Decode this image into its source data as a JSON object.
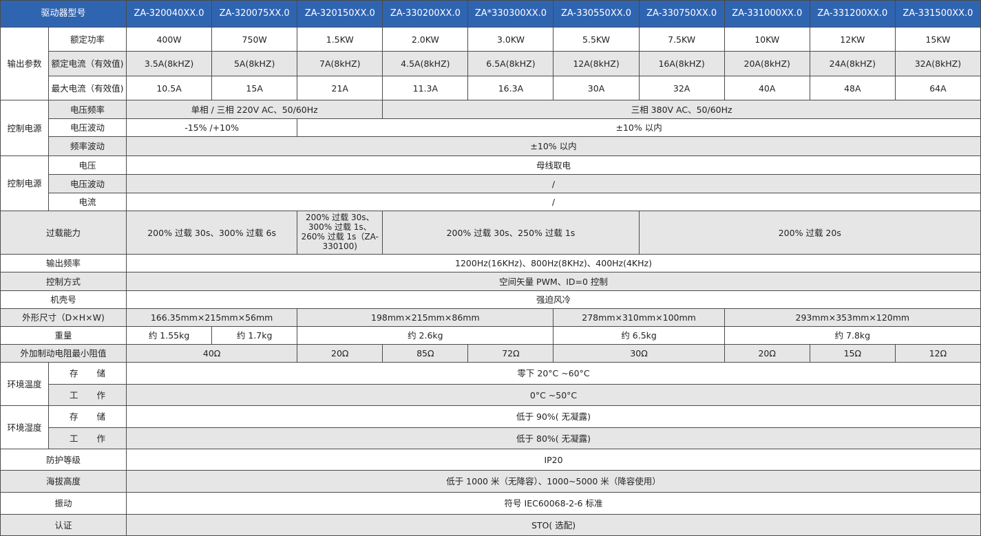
{
  "header": {
    "label": "驱动器型号",
    "models": [
      "ZA-320040XX.0",
      "ZA-320075XX.0",
      "ZA-320150XX.0",
      "ZA-330200XX.0",
      "ZA*330300XX.0",
      "ZA-330550XX.0",
      "ZA-330750XX.0",
      "ZA-331000XX.0",
      "ZA-331200XX.0",
      "ZA-331500XX.0"
    ]
  },
  "colors": {
    "header_bg": "#2f64b1",
    "header_text": "#ffffff",
    "shaded_row": "#e6e6e6",
    "border": "#4a4a4a"
  },
  "rows": [
    {
      "group": "输出参数",
      "group_rows": 3,
      "label": "额定功率",
      "gray": false,
      "h": 35,
      "cells": [
        [
          "400W",
          1
        ],
        [
          "750W",
          1
        ],
        [
          "1.5KW",
          1
        ],
        [
          "2.0KW",
          1
        ],
        [
          "3.0KW",
          1
        ],
        [
          "5.5KW",
          1
        ],
        [
          "7.5KW",
          1
        ],
        [
          "10KW",
          1
        ],
        [
          "12KW",
          1
        ],
        [
          "15KW",
          1
        ]
      ]
    },
    {
      "label": "额定电流（有效值)",
      "gray": true,
      "h": 36,
      "cells": [
        [
          "3.5A(8kHZ)",
          1
        ],
        [
          "5A(8kHZ)",
          1
        ],
        [
          "7A(8kHZ)",
          1
        ],
        [
          "4.5A(8kHZ)",
          1
        ],
        [
          "6.5A(8kHZ)",
          1
        ],
        [
          "12A(8kHZ)",
          1
        ],
        [
          "16A(8kHZ)",
          1
        ],
        [
          "20A(8kHZ)",
          1
        ],
        [
          "24A(8kHZ)",
          1
        ],
        [
          "32A(8kHZ)",
          1
        ]
      ]
    },
    {
      "label": "最大电流（有效值)",
      "gray": false,
      "h": 35,
      "cells": [
        [
          "10.5A",
          1
        ],
        [
          "15A",
          1
        ],
        [
          "21A",
          1
        ],
        [
          "11.3A",
          1
        ],
        [
          "16.3A",
          1
        ],
        [
          "30A",
          1
        ],
        [
          "32A",
          1
        ],
        [
          "40A",
          1
        ],
        [
          "48A",
          1
        ],
        [
          "64A",
          1
        ]
      ]
    },
    {
      "group": "控制电源",
      "group_rows": 3,
      "label": "电压频率",
      "gray": true,
      "h": 27,
      "cells": [
        [
          "单相 / 三相 220V AC、50/60Hz",
          3
        ],
        [
          "三相 380V AC、50/60Hz",
          7
        ]
      ]
    },
    {
      "label": "电压波动",
      "gray": false,
      "h": 26,
      "cells": [
        [
          "-15% /+10%",
          2
        ],
        [
          "±10% 以内",
          8
        ]
      ]
    },
    {
      "label": "频率波动",
      "gray": true,
      "h": 28,
      "cells": [
        [
          "±10% 以内",
          10
        ]
      ]
    },
    {
      "group": "控制电源",
      "group_rows": 3,
      "label": "电压",
      "gray": false,
      "h": 27,
      "cells": [
        [
          "母线取电",
          10
        ]
      ]
    },
    {
      "label": "电压波动",
      "gray": true,
      "h": 27,
      "cells": [
        [
          "/",
          10
        ]
      ]
    },
    {
      "label": "电流",
      "gray": false,
      "h": 26,
      "cells": [
        [
          "/",
          10
        ]
      ]
    },
    {
      "label": "过载能力",
      "gray": true,
      "h": 63,
      "cells": [
        [
          "200% 过载 30s、300% 过载 6s",
          2
        ],
        [
          "200% 过载 30s、300% 过载 1s、260% 过载 1s（ZA-330100)",
          1
        ],
        [
          "200% 过载 30s、250% 过载 1s",
          3
        ],
        [
          "200% 过载 20s",
          4
        ]
      ]
    },
    {
      "label": "输出频率",
      "gray": false,
      "h": 26,
      "cells": [
        [
          "1200Hz(16KHz)、800Hz(8KHz)、400Hz(4KHz)",
          10
        ]
      ]
    },
    {
      "label": "控制方式",
      "gray": true,
      "h": 27,
      "cells": [
        [
          "空间矢量 PWM、ID=0 控制",
          10
        ]
      ]
    },
    {
      "label": "机壳号",
      "gray": false,
      "h": 26,
      "cells": [
        [
          "强迫风冷",
          10
        ]
      ]
    },
    {
      "label": "外形尺寸（D×H×W)",
      "gray": true,
      "h": 26,
      "cells": [
        [
          "166.35mm×215mm×56mm",
          2
        ],
        [
          "198mm×215mm×86mm",
          3
        ],
        [
          "278mm×310mm×100mm",
          2
        ],
        [
          "293mm×353mm×120mm",
          3
        ]
      ]
    },
    {
      "label": "重量",
      "gray": false,
      "h": 26,
      "cells": [
        [
          "约 1.55kg",
          1
        ],
        [
          "约 1.7kg",
          1
        ],
        [
          "约 2.6kg",
          3
        ],
        [
          "约 6.5kg",
          2
        ],
        [
          "约 7.8kg",
          3
        ]
      ]
    },
    {
      "label": "外加制动电阻最小阻值",
      "gray": true,
      "h": 26,
      "cells": [
        [
          "40Ω",
          2
        ],
        [
          "20Ω",
          1
        ],
        [
          "85Ω",
          1
        ],
        [
          "72Ω",
          1
        ],
        [
          "30Ω",
          2
        ],
        [
          "20Ω",
          1
        ],
        [
          "15Ω",
          1
        ],
        [
          "12Ω",
          1
        ]
      ]
    },
    {
      "group": "环境温度",
      "group_rows": 2,
      "label": "存 储",
      "spread": true,
      "gray": false,
      "h": 32,
      "cells": [
        [
          "零下 20°C ~60°C",
          10
        ]
      ]
    },
    {
      "label": "工 作",
      "spread": true,
      "gray": true,
      "h": 31,
      "cells": [
        [
          "0°C ~50°C",
          10
        ]
      ]
    },
    {
      "group": "环境湿度",
      "group_rows": 2,
      "label": "存 储",
      "spread": true,
      "gray": false,
      "h": 32,
      "cells": [
        [
          "低于 90%( 无凝露)",
          10
        ]
      ]
    },
    {
      "label": "工 作",
      "spread": true,
      "gray": true,
      "h": 31,
      "cells": [
        [
          "低于 80%( 无凝露)",
          10
        ]
      ]
    },
    {
      "label": "防护等级",
      "gray": false,
      "h": 31,
      "cells": [
        [
          "IP20",
          10
        ]
      ]
    },
    {
      "label": "海拔高度",
      "gray": true,
      "h": 32,
      "cells": [
        [
          "低于 1000 米（无降容）、1000~5000 米（降容使用）",
          10
        ]
      ]
    },
    {
      "label": "振动",
      "gray": false,
      "h": 32,
      "cells": [
        [
          "符号 IEC60068-2-6 标准",
          10
        ]
      ]
    },
    {
      "label": "认证",
      "gray": true,
      "h": 31,
      "cells": [
        [
          "STO( 选配)",
          10
        ]
      ]
    }
  ]
}
